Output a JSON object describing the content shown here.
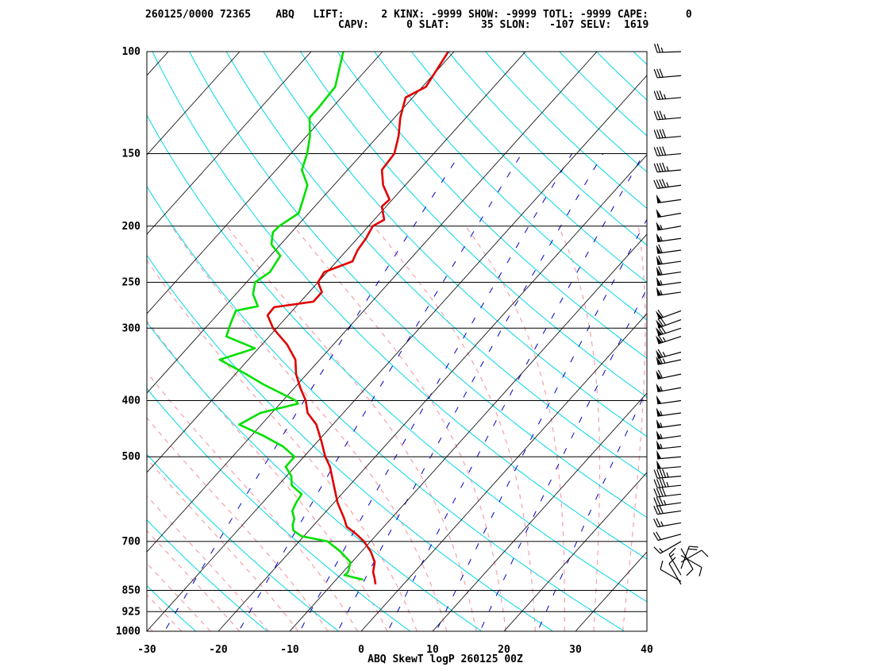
{
  "header": {
    "line1": "260125/0000 72365    ABQ   LIFT:      2 KINX: -9999 SHOW: -9999 TOTL: -9999 CAPE:      0",
    "line2": "CAPV:      0 SLAT:     35 SLON:   -107 SELV:  1619"
  },
  "footer": {
    "title": "ABQ SkewT logP 260125 00Z"
  },
  "colors": {
    "temperature": "#e00000",
    "dewpoint": "#00e000",
    "isotherm": "#000000",
    "isobar": "#000000",
    "dry_adiabat": "#00d8e8",
    "moist_adiabat": "#f4a0a8",
    "mixing_ratio": "#0000c8",
    "wind_barb": "#000000"
  },
  "chart_data": {
    "type": "line",
    "xlabel": "",
    "ylabel": "",
    "xlim": [
      -30,
      40
    ],
    "ylim": [
      1000,
      100
    ],
    "y_scale": "log",
    "x_ticks": [
      "-30",
      "-20",
      "-10",
      "0",
      "10",
      "20",
      "30",
      "40"
    ],
    "y_ticks": [
      "100",
      "150",
      "200",
      "250",
      "300",
      "400",
      "500",
      "700",
      "850",
      "925",
      "1000"
    ],
    "series": [
      {
        "key": "temperature",
        "points": [
          [
            830,
            -3.9
          ],
          [
            810,
            -4.8
          ],
          [
            790,
            -5.8
          ],
          [
            760,
            -6.8
          ],
          [
            730,
            -8.6
          ],
          [
            700,
            -10.9
          ],
          [
            680,
            -12.9
          ],
          [
            660,
            -15.2
          ],
          [
            640,
            -16.5
          ],
          [
            600,
            -19.5
          ],
          [
            560,
            -22.2
          ],
          [
            520,
            -25.1
          ],
          [
            500,
            -27.0
          ],
          [
            470,
            -29.5
          ],
          [
            440,
            -32.3
          ],
          [
            420,
            -35.0
          ],
          [
            400,
            -36.8
          ],
          [
            380,
            -39.2
          ],
          [
            360,
            -41.5
          ],
          [
            340,
            -43.4
          ],
          [
            320,
            -46.5
          ],
          [
            300,
            -50.5
          ],
          [
            285,
            -52.9
          ],
          [
            276,
            -53.0
          ],
          [
            270,
            -48.2
          ],
          [
            260,
            -48.2
          ],
          [
            250,
            -50.0
          ],
          [
            240,
            -50.4
          ],
          [
            230,
            -47.8
          ],
          [
            220,
            -48.5
          ],
          [
            210,
            -48.8
          ],
          [
            200,
            -49.4
          ],
          [
            195,
            -48.6
          ],
          [
            185,
            -50.6
          ],
          [
            180,
            -50.4
          ],
          [
            170,
            -53.1
          ],
          [
            160,
            -55.2
          ],
          [
            150,
            -55.5
          ],
          [
            140,
            -57.1
          ],
          [
            130,
            -59.2
          ],
          [
            120,
            -61.0
          ],
          [
            115,
            -59.5
          ],
          [
            100,
            -60.8
          ]
        ]
      },
      {
        "key": "dewpoint",
        "points": [
          [
            815,
            -6.2
          ],
          [
            800,
            -9.4
          ],
          [
            790,
            -9.3
          ],
          [
            760,
            -10.2
          ],
          [
            730,
            -12.8
          ],
          [
            700,
            -16.0
          ],
          [
            685,
            -20.4
          ],
          [
            670,
            -22.2
          ],
          [
            655,
            -23.0
          ],
          [
            640,
            -23.5
          ],
          [
            620,
            -24.8
          ],
          [
            600,
            -25.3
          ],
          [
            580,
            -25.6
          ],
          [
            560,
            -28.1
          ],
          [
            540,
            -29.3
          ],
          [
            520,
            -31.3
          ],
          [
            500,
            -31.3
          ],
          [
            480,
            -34.2
          ],
          [
            460,
            -38.3
          ],
          [
            440,
            -43.1
          ],
          [
            420,
            -41.6
          ],
          [
            405,
            -37.5
          ],
          [
            400,
            -38.2
          ],
          [
            375,
            -44.8
          ],
          [
            360,
            -48.5
          ],
          [
            340,
            -54.0
          ],
          [
            325,
            -50.5
          ],
          [
            310,
            -56.0
          ],
          [
            295,
            -57.0
          ],
          [
            280,
            -57.9
          ],
          [
            275,
            -55.4
          ],
          [
            262,
            -57.6
          ],
          [
            250,
            -58.8
          ],
          [
            240,
            -58.0
          ],
          [
            225,
            -58.6
          ],
          [
            215,
            -61.3
          ],
          [
            205,
            -62.6
          ],
          [
            200,
            -62.5
          ],
          [
            190,
            -61.4
          ],
          [
            180,
            -62.5
          ],
          [
            170,
            -63.7
          ],
          [
            160,
            -66.4
          ],
          [
            150,
            -67.7
          ],
          [
            140,
            -69.5
          ],
          [
            130,
            -71.9
          ],
          [
            125,
            -71.9
          ],
          [
            115,
            -72.2
          ],
          [
            100,
            -75.5
          ]
        ]
      }
    ],
    "wind_profile": [
      [
        830,
        12,
        330
      ],
      [
        820,
        10,
        300
      ],
      [
        800,
        15,
        330
      ],
      [
        780,
        20,
        20
      ],
      [
        760,
        10,
        60
      ],
      [
        740,
        8,
        120
      ],
      [
        720,
        10,
        150
      ],
      [
        700,
        15,
        240
      ],
      [
        680,
        20,
        255
      ],
      [
        650,
        25,
        260
      ],
      [
        620,
        30,
        262
      ],
      [
        600,
        35,
        262
      ],
      [
        580,
        40,
        263
      ],
      [
        560,
        45,
        264
      ],
      [
        540,
        45,
        265
      ],
      [
        520,
        50,
        265
      ],
      [
        500,
        50,
        265
      ],
      [
        480,
        55,
        264
      ],
      [
        460,
        55,
        262
      ],
      [
        440,
        55,
        262
      ],
      [
        420,
        55,
        262
      ],
      [
        400,
        50,
        262
      ],
      [
        380,
        55,
        260
      ],
      [
        360,
        60,
        258
      ],
      [
        340,
        65,
        258
      ],
      [
        330,
        65,
        255
      ],
      [
        310,
        65,
        252
      ],
      [
        300,
        70,
        252
      ],
      [
        290,
        70,
        250
      ],
      [
        280,
        60,
        250
      ],
      [
        260,
        55,
        262
      ],
      [
        250,
        55,
        262
      ],
      [
        240,
        60,
        262
      ],
      [
        230,
        60,
        262
      ],
      [
        220,
        60,
        262
      ],
      [
        210,
        55,
        262
      ],
      [
        200,
        55,
        260
      ],
      [
        190,
        50,
        260
      ],
      [
        180,
        50,
        262
      ],
      [
        170,
        45,
        262
      ],
      [
        160,
        45,
        265
      ],
      [
        150,
        40,
        265
      ],
      [
        140,
        40,
        265
      ],
      [
        130,
        35,
        265
      ],
      [
        120,
        35,
        265
      ],
      [
        110,
        30,
        265
      ],
      [
        100,
        25,
        268
      ]
    ]
  }
}
